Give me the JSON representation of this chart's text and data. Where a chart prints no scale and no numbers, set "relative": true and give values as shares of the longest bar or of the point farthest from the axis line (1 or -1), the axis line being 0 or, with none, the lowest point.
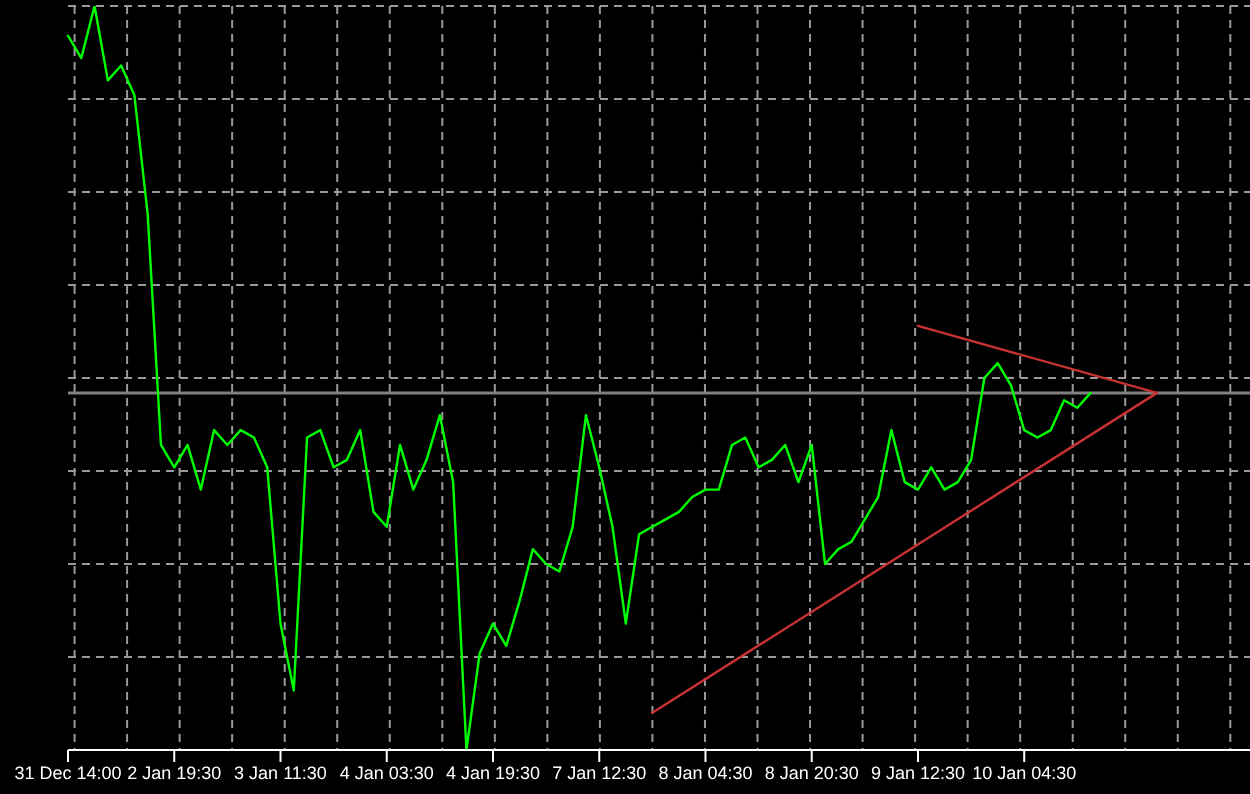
{
  "chart_data": {
    "type": "line",
    "relative": true,
    "grid": true,
    "legend": false,
    "marker": "none",
    "tick_labels": "x",
    "categories": [
      "31 Dec 14:00",
      null,
      null,
      null,
      null,
      null,
      null,
      null,
      "2 Jan 19:30",
      null,
      null,
      null,
      null,
      null,
      null,
      null,
      "3 Jan 11:30",
      null,
      null,
      null,
      null,
      null,
      null,
      null,
      "4 Jan 03:30",
      null,
      null,
      null,
      null,
      null,
      null,
      null,
      "4 Jan 19:30",
      null,
      null,
      null,
      null,
      null,
      null,
      null,
      "7 Jan 12:30",
      null,
      null,
      null,
      null,
      null,
      null,
      null,
      "8 Jan 04:30",
      null,
      null,
      null,
      null,
      null,
      null,
      null,
      "8 Jan 20:30",
      null,
      null,
      null,
      null,
      null,
      null,
      null,
      "9 Jan 12:30",
      null,
      null,
      null,
      null,
      null,
      null,
      null,
      "10 Jan 04:30",
      null,
      null,
      null,
      null,
      null,
      null,
      null,
      null,
      null,
      null,
      null,
      null,
      null,
      null,
      null,
      null,
      null
    ],
    "series": [
      {
        "type": "line",
        "color": "#00ff00",
        "values": [
          0.96,
          0.93,
          1,
          0.9,
          0.92,
          0.88,
          0.72,
          0.41,
          0.38,
          0.41,
          0.35,
          0.43,
          0.41,
          0.43,
          0.42,
          0.38,
          0.17,
          0.08,
          0.42,
          0.43,
          0.38,
          0.39,
          0.43,
          0.32,
          0.3,
          0.41,
          0.35,
          0.39,
          0.45,
          0.36,
          0,
          0.13,
          0.17,
          0.14,
          0.2,
          0.27,
          0.25,
          0.24,
          0.3,
          0.45,
          0.38,
          0.3,
          0.17,
          0.29,
          0.3,
          0.31,
          0.32,
          0.34,
          0.35,
          0.35,
          0.41,
          0.42,
          0.38,
          0.39,
          0.41,
          0.36,
          0.41,
          0.25,
          0.27,
          0.28,
          0.31,
          0.34,
          0.43,
          0.36,
          0.35,
          0.38,
          0.35,
          0.36,
          0.39,
          0.5,
          0.52,
          0.49,
          0.43,
          0.42,
          0.43,
          0.47,
          0.46,
          0.48,
          null,
          null,
          null,
          null,
          null,
          null,
          null,
          null,
          null,
          null,
          null,
          null
        ]
      },
      {
        "type": "line",
        "color": "#c83232",
        "values": [
          null,
          null,
          null,
          null,
          null,
          null,
          null,
          null,
          null,
          null,
          null,
          null,
          null,
          null,
          null,
          null,
          null,
          null,
          null,
          null,
          null,
          null,
          null,
          null,
          null,
          null,
          null,
          null,
          null,
          null,
          null,
          null,
          null,
          null,
          null,
          null,
          null,
          null,
          null,
          null,
          null,
          null,
          null,
          null,
          null,
          null,
          null,
          null,
          null,
          null,
          null,
          null,
          null,
          null,
          null,
          null,
          null,
          null,
          null,
          null,
          null,
          null,
          null,
          null,
          0.57,
          null,
          null,
          null,
          null,
          null,
          null,
          null,
          null,
          null,
          null,
          null,
          null,
          null,
          null,
          null,
          null,
          null,
          0.48,
          null,
          null,
          null,
          null,
          null,
          null,
          null
        ]
      },
      {
        "type": "line",
        "color": "#c83232",
        "values": [
          null,
          null,
          null,
          null,
          null,
          null,
          null,
          null,
          null,
          null,
          null,
          null,
          null,
          null,
          null,
          null,
          null,
          null,
          null,
          null,
          null,
          null,
          null,
          null,
          null,
          null,
          null,
          null,
          null,
          null,
          null,
          null,
          null,
          null,
          null,
          null,
          null,
          null,
          null,
          null,
          null,
          null,
          null,
          null,
          0.05,
          null,
          null,
          null,
          null,
          null,
          null,
          null,
          null,
          null,
          null,
          null,
          null,
          null,
          null,
          null,
          null,
          null,
          null,
          null,
          null,
          null,
          null,
          null,
          null,
          null,
          null,
          null,
          null,
          null,
          null,
          null,
          null,
          null,
          null,
          null,
          null,
          null,
          0.48,
          null,
          null,
          null,
          null,
          null,
          null,
          null
        ]
      }
    ],
    "ref_lines": [
      {
        "axis": "y",
        "value": 0.48,
        "color": "#808080"
      }
    ]
  }
}
